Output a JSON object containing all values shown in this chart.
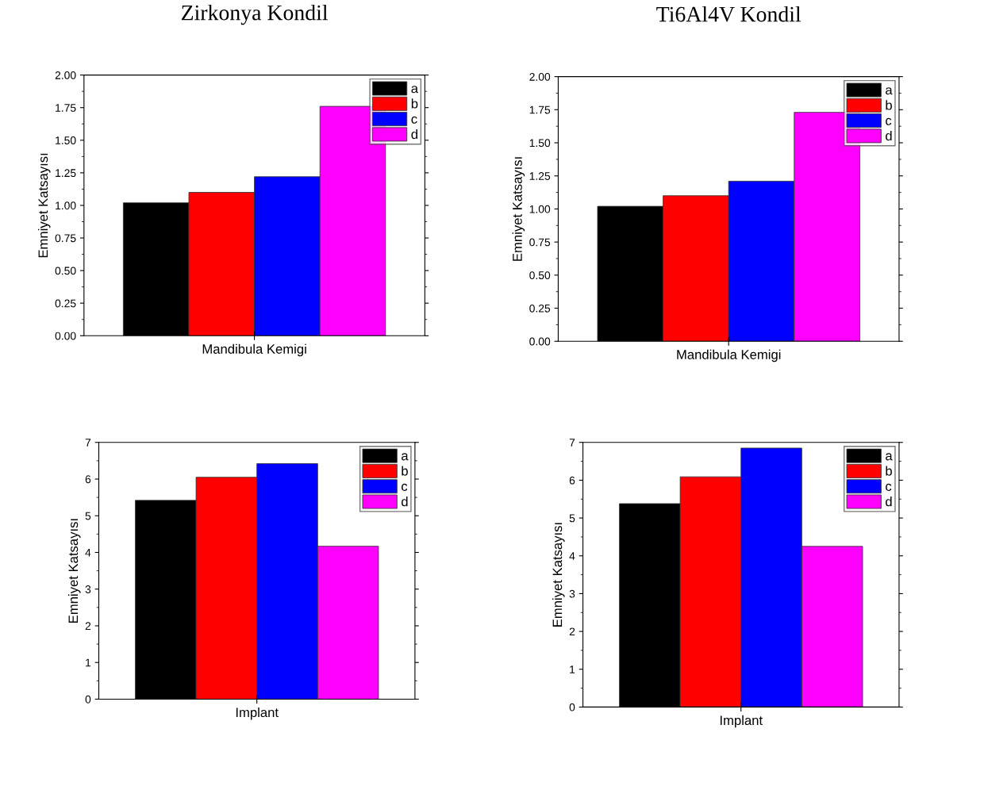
{
  "chart_data": [
    {
      "type": "bar",
      "title": "Zirkonya Kondil",
      "ylabel": "Emniyet Katsayısı",
      "categories": [
        "Mandibula Kemigi"
      ],
      "legend": "top right",
      "ylim": [
        0,
        2
      ],
      "yticks": [
        {
          "value": 0,
          "label": "0.00"
        },
        {
          "value": 0.25,
          "label": "0.25"
        },
        {
          "value": 0.5,
          "label": "0.50"
        },
        {
          "value": 0.75,
          "label": "0.75"
        },
        {
          "value": 1,
          "label": "1.00"
        },
        {
          "value": 1.25,
          "label": "1.25"
        },
        {
          "value": 1.5,
          "label": "1.50"
        },
        {
          "value": 1.75,
          "label": "1.75"
        },
        {
          "value": 2,
          "label": "2.00"
        }
      ],
      "series": [
        {
          "name": "a",
          "color": "#000000",
          "values": [
            1.02
          ]
        },
        {
          "name": "b",
          "color": "#ff0000",
          "values": [
            1.1
          ]
        },
        {
          "name": "c",
          "color": "#0000ff",
          "values": [
            1.22
          ]
        },
        {
          "name": "d",
          "color": "#ff00ff",
          "values": [
            1.76
          ]
        }
      ]
    },
    {
      "type": "bar",
      "title": "Ti6Al4V Kondil",
      "ylabel": "Emniyet Katsayısı",
      "categories": [
        "Mandibula Kemigi"
      ],
      "legend": "top right",
      "ylim": [
        0,
        2
      ],
      "yticks": [
        {
          "value": 0,
          "label": "0.00"
        },
        {
          "value": 0.25,
          "label": "0.25"
        },
        {
          "value": 0.5,
          "label": "0.50"
        },
        {
          "value": 0.75,
          "label": "0.75"
        },
        {
          "value": 1,
          "label": "1.00"
        },
        {
          "value": 1.25,
          "label": "1.25"
        },
        {
          "value": 1.5,
          "label": "1.50"
        },
        {
          "value": 1.75,
          "label": "1.75"
        },
        {
          "value": 2,
          "label": "2.00"
        }
      ],
      "series": [
        {
          "name": "a",
          "color": "#000000",
          "values": [
            1.02
          ]
        },
        {
          "name": "b",
          "color": "#ff0000",
          "values": [
            1.1
          ]
        },
        {
          "name": "c",
          "color": "#0000ff",
          "values": [
            1.21
          ]
        },
        {
          "name": "d",
          "color": "#ff00ff",
          "values": [
            1.73
          ]
        }
      ]
    },
    {
      "type": "bar",
      "ylabel": "Emniyet Katsayısı",
      "categories": [
        "Implant"
      ],
      "legend": "top right",
      "ylim": [
        0,
        7
      ],
      "yticks": [
        0,
        1,
        2,
        3,
        4,
        5,
        6,
        7
      ],
      "series": [
        {
          "name": "a",
          "color": "#000000",
          "values": [
            5.42
          ]
        },
        {
          "name": "b",
          "color": "#ff0000",
          "values": [
            6.05
          ]
        },
        {
          "name": "c",
          "color": "#0000ff",
          "values": [
            6.42
          ]
        },
        {
          "name": "d",
          "color": "#ff00ff",
          "values": [
            4.17
          ]
        }
      ]
    },
    {
      "type": "bar",
      "ylabel": "Emniyet Katsayısı",
      "categories": [
        "Implant"
      ],
      "legend": "top right",
      "ylim": [
        0,
        7
      ],
      "yticks": [
        0,
        1,
        2,
        3,
        4,
        5,
        6,
        7
      ],
      "series": [
        {
          "name": "a",
          "color": "#000000",
          "values": [
            5.38
          ]
        },
        {
          "name": "b",
          "color": "#ff0000",
          "values": [
            6.09
          ]
        },
        {
          "name": "c",
          "color": "#0000ff",
          "values": [
            6.85
          ]
        },
        {
          "name": "d",
          "color": "#ff00ff",
          "values": [
            4.25
          ]
        }
      ]
    }
  ]
}
